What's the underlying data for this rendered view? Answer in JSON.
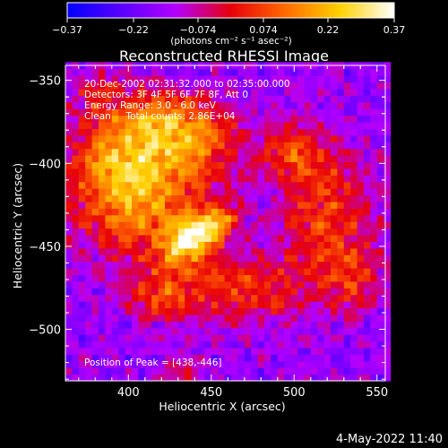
{
  "chart_data": {
    "type": "heatmap",
    "title": "Reconstructed RHESSI Image",
    "xlabel": "Heliocentric X (arcsec)",
    "ylabel": "Heliocentric Y (arcsec)",
    "xlim": [
      362,
      555
    ],
    "ylim": [
      -531,
      -341
    ],
    "x_ticks": [
      400,
      450,
      500,
      550
    ],
    "y_ticks": [
      -350,
      -400,
      -450,
      -500
    ],
    "x_tick_labels": [
      "400",
      "450",
      "500",
      "550"
    ],
    "y_tick_labels": [
      "−350",
      "−400",
      "−450",
      "−500"
    ],
    "colorbar": {
      "range": [
        -0.37,
        0.37
      ],
      "ticks": [
        -0.37,
        -0.22,
        -0.074,
        0.074,
        0.22,
        0.37
      ],
      "tick_labels": [
        "−0.37",
        "−0.22",
        "−0.074",
        "0.074",
        "0.22",
        "0.37"
      ],
      "units_label": "(photons cm⁻² s⁻¹ asec⁻²)",
      "colormap": [
        "#0000ff",
        "#5a00ff",
        "#b400ff",
        "#e8000a",
        "#ff6a00",
        "#ffd200",
        "#ffffff"
      ]
    },
    "annotations": [
      "20-Dec-2002 02:31:32.000 to 02:35:00.000",
      "Detectors: 3F 4F 5F 6F 7F 8F, Att 0",
      "Energy Range: 3.0 - 6.0 keV",
      "Clean     Total counts: 2.86E+04"
    ],
    "peak_label": "Position of Peak = [438,-446]",
    "peak": [
      438,
      -446
    ],
    "background_value": -0.16,
    "sources": [
      {
        "x": 438,
        "y": -446,
        "sx": 14,
        "sy": 9,
        "angle": 40,
        "peak": 0.4
      },
      {
        "x": 455,
        "y": -435,
        "sx": 9,
        "sy": 6,
        "angle": 35,
        "peak": 0.2
      },
      {
        "x": 408,
        "y": -425,
        "sx": 28,
        "sy": 22,
        "angle": 0,
        "peak": 0.3
      },
      {
        "x": 395,
        "y": -395,
        "sx": 22,
        "sy": 18,
        "angle": 0,
        "peak": 0.26
      },
      {
        "x": 440,
        "y": -388,
        "sx": 20,
        "sy": 14,
        "angle": 0,
        "peak": 0.24
      },
      {
        "x": 418,
        "y": -370,
        "sx": 24,
        "sy": 12,
        "angle": 0,
        "peak": 0.22
      },
      {
        "x": 500,
        "y": -392,
        "sx": 14,
        "sy": 12,
        "angle": 0,
        "peak": 0.2
      },
      {
        "x": 520,
        "y": -430,
        "sx": 20,
        "sy": 26,
        "angle": 0,
        "peak": 0.22
      },
      {
        "x": 470,
        "y": -475,
        "sx": 30,
        "sy": 14,
        "angle": 0,
        "peak": 0.2
      },
      {
        "x": 420,
        "y": -480,
        "sx": 16,
        "sy": 10,
        "angle": 0,
        "peak": 0.18
      },
      {
        "x": 535,
        "y": -470,
        "sx": 12,
        "sy": 14,
        "angle": 0,
        "peak": 0.16
      },
      {
        "x": 430,
        "y": -525,
        "sx": 8,
        "sy": 6,
        "angle": 0,
        "peak": 0.16
      },
      {
        "x": 380,
        "y": -355,
        "sx": 10,
        "sy": 8,
        "angle": 0,
        "peak": 0.12
      }
    ]
  },
  "footer": {
    "timestamp": "4-May-2022 11:40"
  }
}
